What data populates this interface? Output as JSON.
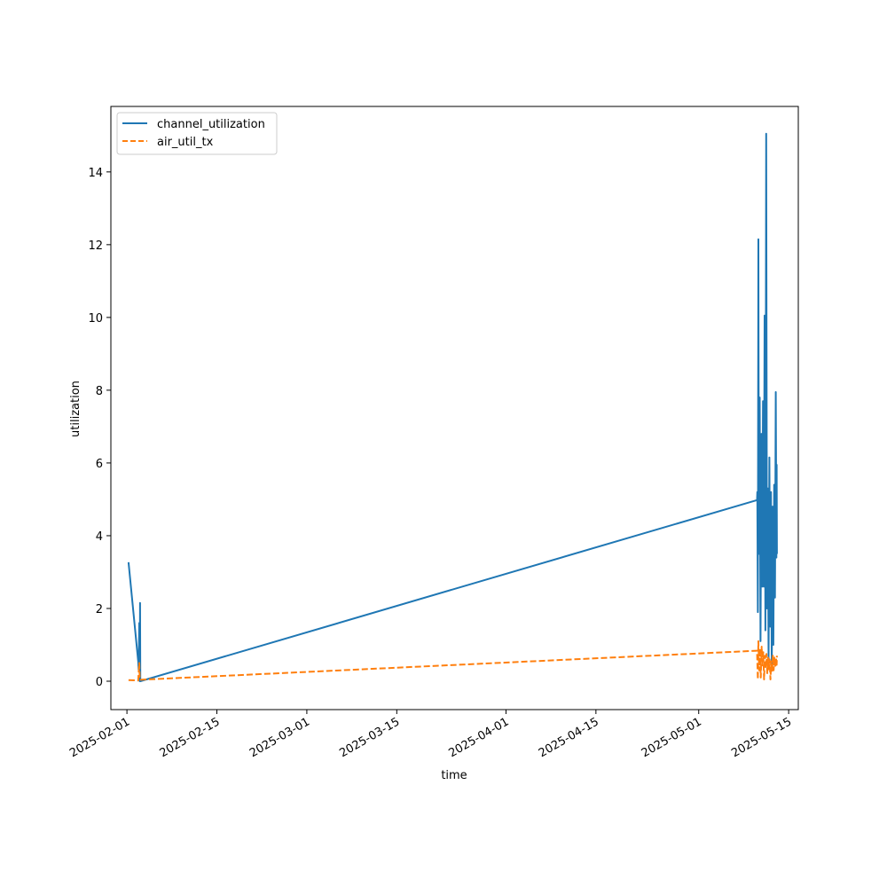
{
  "chart_data": {
    "type": "line",
    "xlabel": "time",
    "ylabel": "utilization",
    "x_axis_type": "date",
    "xlim": [
      "2025-01-29T12:00",
      "2025-05-16T12:00"
    ],
    "ylim": [
      -0.78,
      15.8
    ],
    "x_ticks": [
      "2025-02-01",
      "2025-02-15",
      "2025-03-01",
      "2025-03-15",
      "2025-04-01",
      "2025-04-15",
      "2025-05-01",
      "2025-05-15"
    ],
    "y_ticks": [
      0,
      2,
      4,
      6,
      8,
      10,
      12,
      14
    ],
    "grid": false,
    "legend_position": "upper-left",
    "series": [
      {
        "name": "channel_utilization",
        "color": "#1f77b4",
        "style": "solid",
        "points": [
          [
            "2025-02-01T06:00",
            3.27
          ],
          [
            "2025-02-02T18:00",
            0.55
          ],
          [
            "2025-02-02T20:00",
            0.3
          ],
          [
            "2025-02-02T22:00",
            1.6
          ],
          [
            "2025-02-03T00:00",
            0.0
          ],
          [
            "2025-02-03T01:00",
            2.15
          ],
          [
            "2025-02-03T02:00",
            0.0
          ],
          [
            "2025-05-10T02:00",
            4.98
          ],
          [
            "2025-05-10T03:00",
            5.2
          ],
          [
            "2025-05-10T05:00",
            1.9
          ],
          [
            "2025-05-10T07:00",
            12.15
          ],
          [
            "2025-05-10T09:00",
            3.5
          ],
          [
            "2025-05-10T12:00",
            7.8
          ],
          [
            "2025-05-10T15:00",
            1.1
          ],
          [
            "2025-05-10T18:00",
            6.8
          ],
          [
            "2025-05-10T21:00",
            2.6
          ],
          [
            "2025-05-11T00:00",
            7.7
          ],
          [
            "2025-05-11T03:00",
            2.6
          ],
          [
            "2025-05-11T06:00",
            10.05
          ],
          [
            "2025-05-11T09:00",
            1.4
          ],
          [
            "2025-05-11T12:00",
            15.05
          ],
          [
            "2025-05-11T15:00",
            2.0
          ],
          [
            "2025-05-11T18:00",
            5.3
          ],
          [
            "2025-05-11T21:00",
            0.6
          ],
          [
            "2025-05-12T00:00",
            6.15
          ],
          [
            "2025-05-12T03:00",
            1.5
          ],
          [
            "2025-05-12T06:00",
            5.2
          ],
          [
            "2025-05-12T09:00",
            0.3
          ],
          [
            "2025-05-12T12:00",
            4.8
          ],
          [
            "2025-05-12T15:00",
            1.0
          ],
          [
            "2025-05-12T18:00",
            5.4
          ],
          [
            "2025-05-12T21:00",
            2.3
          ],
          [
            "2025-05-13T00:00",
            7.95
          ],
          [
            "2025-05-13T02:00",
            3.4
          ],
          [
            "2025-05-13T03:00",
            5.95
          ],
          [
            "2025-05-13T04:00",
            3.5
          ]
        ]
      },
      {
        "name": "air_util_tx",
        "color": "#ff7f0e",
        "style": "dashed",
        "points": [
          [
            "2025-02-01T06:00",
            0.03
          ],
          [
            "2025-02-02T18:00",
            0.02
          ],
          [
            "2025-02-02T22:00",
            0.5
          ],
          [
            "2025-02-03T00:00",
            0.04
          ],
          [
            "2025-05-10T02:00",
            0.84
          ],
          [
            "2025-05-10T03:00",
            0.55
          ],
          [
            "2025-05-10T05:00",
            0.05
          ],
          [
            "2025-05-10T07:00",
            1.1
          ],
          [
            "2025-05-10T10:00",
            0.3
          ],
          [
            "2025-05-10T13:00",
            0.9
          ],
          [
            "2025-05-10T16:00",
            0.1
          ],
          [
            "2025-05-10T19:00",
            0.95
          ],
          [
            "2025-05-10T22:00",
            0.4
          ],
          [
            "2025-05-11T01:00",
            0.8
          ],
          [
            "2025-05-11T04:00",
            0.05
          ],
          [
            "2025-05-11T07:00",
            0.7
          ],
          [
            "2025-05-11T10:00",
            0.35
          ],
          [
            "2025-05-11T13:00",
            0.75
          ],
          [
            "2025-05-11T16:00",
            0.2
          ],
          [
            "2025-05-11T19:00",
            0.65
          ],
          [
            "2025-05-11T22:00",
            0.3
          ],
          [
            "2025-05-12T01:00",
            0.6
          ],
          [
            "2025-05-12T04:00",
            0.05
          ],
          [
            "2025-05-12T07:00",
            0.55
          ],
          [
            "2025-05-12T10:00",
            0.25
          ],
          [
            "2025-05-12T13:00",
            0.7
          ],
          [
            "2025-05-12T16:00",
            0.3
          ],
          [
            "2025-05-12T19:00",
            0.65
          ],
          [
            "2025-05-12T22:00",
            0.4
          ],
          [
            "2025-05-13T01:00",
            0.6
          ],
          [
            "2025-05-13T03:00",
            0.45
          ],
          [
            "2025-05-13T04:00",
            0.7
          ]
        ]
      }
    ]
  }
}
